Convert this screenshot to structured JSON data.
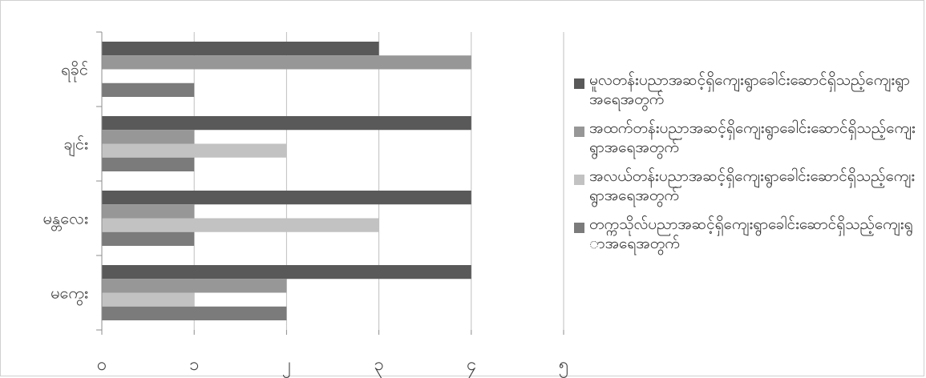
{
  "chart_data": {
    "type": "bar",
    "orientation": "horizontal",
    "categories": [
      "ရခိုင်",
      "ချင်း",
      "မန္တလေး",
      "မကွေး"
    ],
    "x_ticks": [
      "၀",
      "၁",
      "၂",
      "၃",
      "၄",
      "၅"
    ],
    "xlim": [
      0,
      5
    ],
    "grid": true,
    "legend_position": "right",
    "series": [
      {
        "name": "မူလတန်းပညာအဆင့်ရှိကျေးရွာခေါင်းဆောင်ရှိသည့်ကျေးရွာအရေအတွက်",
        "color": "#595959",
        "values": [
          3,
          4,
          4,
          4
        ]
      },
      {
        "name": "အထက်တန်းပညာအဆင့်ရှိကျေးရွာခေါင်းဆောင်ရှိသည့်ကျေးရွာအရေအတွက်",
        "color": "#979797",
        "values": [
          4,
          1,
          1,
          2
        ]
      },
      {
        "name": "အလယ်တန်းပညာအဆင့်ရှိကျေးရွာခေါင်းဆောင်ရှိသည့်ကျေးရွာအရေအတွက်",
        "color": "#c2c2c2",
        "values": [
          0,
          2,
          3,
          1
        ]
      },
      {
        "name": "တက္ကသိုလ်ပညာအဆင့်ရှိကျေးရွာခေါင်းဆောင်ရှိသည့်ကျေးရွာအရေအတွက်",
        "color": "#7b7b7b",
        "values": [
          1,
          1,
          1,
          2
        ]
      }
    ]
  }
}
